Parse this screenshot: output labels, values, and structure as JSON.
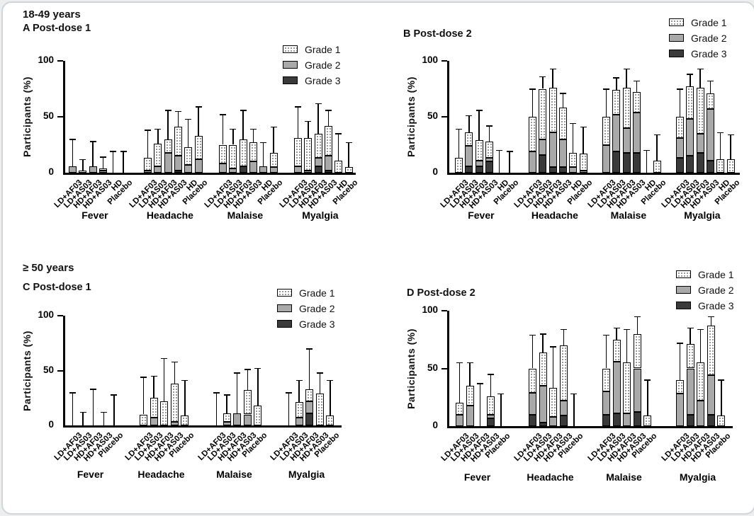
{
  "figure": {
    "top_header": "18-49 years",
    "bottom_header": "≥ 50 years"
  },
  "legend": {
    "labels": [
      "Grade 1",
      "Grade 2",
      "Grade 3"
    ]
  },
  "colors": {
    "grade1_fill": "#ffffff",
    "grade1_dots": "#4a4a4a",
    "grade2_fill": "#a9a9a9",
    "grade3_fill": "#3a3a3a",
    "bar_border": "#000000",
    "axis": "#000000",
    "frame_border": "#d2d6d9"
  },
  "chart_data": [
    {
      "id": "A",
      "type": "bar",
      "stacked": true,
      "title": "A Post-dose 1",
      "age_group": "18-49 years",
      "ylabel": "Participants (%)",
      "ylim": [
        0,
        100
      ],
      "yticks": [
        0,
        50,
        100
      ],
      "grid": false,
      "legend_position": "top-right",
      "series_order": [
        "Grade 3",
        "Grade 2",
        "Grade 1"
      ],
      "groups": [
        {
          "label": "Fever",
          "arms": [
            "LD+AF03",
            "LD+AS03",
            "HD+AF03",
            "HD+AS03",
            "HD",
            "Placebo"
          ],
          "values": [
            {
              "grade1": 0,
              "grade2": 6,
              "grade3": 0,
              "err_top": 30
            },
            {
              "grade1": 2,
              "grade2": 0,
              "grade3": 0,
              "err_top": 12
            },
            {
              "grade1": 0,
              "grade2": 6,
              "grade3": 0,
              "err_top": 28
            },
            {
              "grade1": 2,
              "grade2": 2,
              "grade3": 0,
              "err_top": 14
            },
            {
              "grade1": 0,
              "grade2": 0,
              "grade3": 0,
              "err_top": 19
            },
            {
              "grade1": 0,
              "grade2": 0,
              "grade3": 0,
              "err_top": 19
            }
          ]
        },
        {
          "label": "Headache",
          "arms": [
            "LD+AF03",
            "LD+AS03",
            "HD+AF03",
            "HD+AS03",
            "HD",
            "Placebo"
          ],
          "values": [
            {
              "grade1": 11,
              "grade2": 2,
              "grade3": 0,
              "err_top": 38
            },
            {
              "grade1": 20,
              "grade2": 6,
              "grade3": 0,
              "err_top": 39
            },
            {
              "grade1": 12,
              "grade2": 18,
              "grade3": 0,
              "err_top": 56
            },
            {
              "grade1": 26,
              "grade2": 13,
              "grade3": 2,
              "err_top": 55
            },
            {
              "grade1": 16,
              "grade2": 7,
              "grade3": 0,
              "err_top": 48
            },
            {
              "grade1": 21,
              "grade2": 12,
              "grade3": 0,
              "err_top": 59
            }
          ]
        },
        {
          "label": "Malaise",
          "arms": [
            "LD+AF03",
            "LD+AS03",
            "HD+AF03",
            "HD+AS03",
            "HD",
            "Placebo"
          ],
          "values": [
            {
              "grade1": 17,
              "grade2": 8,
              "grade3": 0,
              "err_top": 52
            },
            {
              "grade1": 21,
              "grade2": 4,
              "grade3": 0,
              "err_top": 39
            },
            {
              "grade1": 24,
              "grade2": 0,
              "grade3": 6,
              "err_top": 56
            },
            {
              "grade1": 17,
              "grade2": 10,
              "grade3": 0,
              "err_top": 39
            },
            {
              "grade1": 0,
              "grade2": 6,
              "grade3": 0,
              "err_top": 27
            },
            {
              "grade1": 13,
              "grade2": 5,
              "grade3": 0,
              "err_top": 41
            }
          ]
        },
        {
          "label": "Myalgia",
          "arms": [
            "LD+AF03",
            "LD+AS03",
            "HD+AF03",
            "HD+AS03",
            "HD",
            "Placebo"
          ],
          "values": [
            {
              "grade1": 25,
              "grade2": 6,
              "grade3": 0,
              "err_top": 59
            },
            {
              "grade1": 29,
              "grade2": 2,
              "grade3": 0,
              "err_top": 46
            },
            {
              "grade1": 22,
              "grade2": 7,
              "grade3": 6,
              "err_top": 62
            },
            {
              "grade1": 27,
              "grade2": 13,
              "grade3": 2,
              "err_top": 56
            },
            {
              "grade1": 11,
              "grade2": 0,
              "grade3": 0,
              "err_top": 35
            },
            {
              "grade1": 5,
              "grade2": 0,
              "grade3": 0,
              "err_top": 27
            }
          ]
        }
      ]
    },
    {
      "id": "B",
      "type": "bar",
      "stacked": true,
      "title": "B Post-dose 2",
      "age_group": "18-49 years",
      "ylabel": "Participants (%)",
      "ylim": [
        0,
        100
      ],
      "yticks": [
        0,
        50,
        100
      ],
      "grid": false,
      "legend_position": "top-right",
      "series_order": [
        "Grade 3",
        "Grade 2",
        "Grade 1"
      ],
      "groups": [
        {
          "label": "Fever",
          "arms": [
            "LD+AF03",
            "LD+AS03",
            "HD+AF03",
            "HD+AS03",
            "HD",
            "Placebo"
          ],
          "values": [
            {
              "grade1": 13,
              "grade2": 0,
              "grade3": 0,
              "err_top": 39
            },
            {
              "grade1": 12,
              "grade2": 18,
              "grade3": 6,
              "err_top": 51
            },
            {
              "grade1": 18,
              "grade2": 5,
              "grade3": 6,
              "err_top": 56
            },
            {
              "grade1": 15,
              "grade2": 3,
              "grade3": 10,
              "err_top": 42
            },
            {
              "grade1": 0,
              "grade2": 0,
              "grade3": 0,
              "err_top": 20
            },
            {
              "grade1": 0,
              "grade2": 0,
              "grade3": 0,
              "err_top": 19
            }
          ]
        },
        {
          "label": "Headache",
          "arms": [
            "LD+AF03",
            "LD+AS03",
            "HD+AF03",
            "HD+AS03",
            "HD",
            "Placebo"
          ],
          "values": [
            {
              "grade1": 31,
              "grade2": 19,
              "grade3": 0,
              "err_top": 75
            },
            {
              "grade1": 45,
              "grade2": 14,
              "grade3": 16,
              "err_top": 86
            },
            {
              "grade1": 40,
              "grade2": 31,
              "grade3": 5,
              "err_top": 93
            },
            {
              "grade1": 28,
              "grade2": 25,
              "grade3": 5,
              "err_top": 71
            },
            {
              "grade1": 13,
              "grade2": 5,
              "grade3": 0,
              "err_top": 44
            },
            {
              "grade1": 15,
              "grade2": 2,
              "grade3": 0,
              "err_top": 41
            }
          ]
        },
        {
          "label": "Malaise",
          "arms": [
            "LD+AF03",
            "LD+AS03",
            "HD+AF03",
            "HD+AS03",
            "HD",
            "Placebo"
          ],
          "values": [
            {
              "grade1": 25,
              "grade2": 25,
              "grade3": 0,
              "err_top": 75
            },
            {
              "grade1": 22,
              "grade2": 33,
              "grade3": 19,
              "err_top": 85
            },
            {
              "grade1": 36,
              "grade2": 22,
              "grade3": 18,
              "err_top": 93
            },
            {
              "grade1": 18,
              "grade2": 36,
              "grade3": 18,
              "err_top": 82
            },
            {
              "grade1": 0,
              "grade2": 0,
              "grade3": 0,
              "err_top": 20
            },
            {
              "grade1": 11,
              "grade2": 0,
              "grade3": 0,
              "err_top": 34
            }
          ]
        },
        {
          "label": "Myalgia",
          "arms": [
            "LD+AF03",
            "LD+AS03",
            "HD+AF03",
            "HD+AS03",
            "HD",
            "Placebo"
          ],
          "values": [
            {
              "grade1": 19,
              "grade2": 18,
              "grade3": 13,
              "err_top": 75
            },
            {
              "grade1": 29,
              "grade2": 33,
              "grade3": 15,
              "err_top": 88
            },
            {
              "grade1": 41,
              "grade2": 17,
              "grade3": 18,
              "err_top": 93
            },
            {
              "grade1": 14,
              "grade2": 46,
              "grade3": 11,
              "err_top": 82
            },
            {
              "grade1": 12,
              "grade2": 0,
              "grade3": 0,
              "err_top": 36
            },
            {
              "grade1": 12,
              "grade2": 0,
              "grade3": 0,
              "err_top": 34
            }
          ]
        }
      ]
    },
    {
      "id": "C",
      "type": "bar",
      "stacked": true,
      "title": "C Post-dose 1",
      "age_group": "≥ 50 years",
      "ylabel": "Participants (%)",
      "ylim": [
        0,
        100
      ],
      "yticks": [
        0,
        50,
        100
      ],
      "grid": false,
      "legend_position": "top-right",
      "series_order": [
        "Grade 3",
        "Grade 2",
        "Grade 1"
      ],
      "groups": [
        {
          "label": "Fever",
          "arms": [
            "LD+AF03",
            "LD+AS03",
            "HD+AF03",
            "HD+AS03",
            "Placebo"
          ],
          "values": [
            {
              "grade1": 0,
              "grade2": 0,
              "grade3": 0,
              "err_top": 30
            },
            {
              "grade1": 0,
              "grade2": 0,
              "grade3": 0,
              "err_top": 12
            },
            {
              "grade1": 0,
              "grade2": 0,
              "grade3": 0,
              "err_top": 33
            },
            {
              "grade1": 0,
              "grade2": 0,
              "grade3": 0,
              "err_top": 12
            },
            {
              "grade1": 0,
              "grade2": 0,
              "grade3": 0,
              "err_top": 28
            }
          ]
        },
        {
          "label": "Headache",
          "arms": [
            "LD+AF03",
            "LD+AS03",
            "HD+AF03",
            "HD+AS03",
            "Placebo"
          ],
          "values": [
            {
              "grade1": 10,
              "grade2": 0,
              "grade3": 0,
              "err_top": 44
            },
            {
              "grade1": 18,
              "grade2": 7,
              "grade3": 0,
              "err_top": 45
            },
            {
              "grade1": 22,
              "grade2": 0,
              "grade3": 0,
              "err_top": 61
            },
            {
              "grade1": 35,
              "grade2": 3,
              "grade3": 0,
              "err_top": 58
            },
            {
              "grade1": 9,
              "grade2": 0,
              "grade3": 0,
              "err_top": 41
            }
          ]
        },
        {
          "label": "Malaise",
          "arms": [
            "LD+AF03",
            "LD+AS03",
            "HD+AF03",
            "HD+AS03",
            "Placebo"
          ],
          "values": [
            {
              "grade1": 0,
              "grade2": 0,
              "grade3": 0,
              "err_top": 30
            },
            {
              "grade1": 8,
              "grade2": 3,
              "grade3": 0,
              "err_top": 28
            },
            {
              "grade1": 0,
              "grade2": 11,
              "grade3": 0,
              "err_top": 48
            },
            {
              "grade1": 22,
              "grade2": 10,
              "grade3": 0,
              "err_top": 51
            },
            {
              "grade1": 18,
              "grade2": 0,
              "grade3": 0,
              "err_top": 52
            }
          ]
        },
        {
          "label": "Myalgia",
          "arms": [
            "LD+AF03",
            "LD+AS03",
            "HD+AF03",
            "HD+AS03",
            "Placebo"
          ],
          "values": [
            {
              "grade1": 0,
              "grade2": 0,
              "grade3": 0,
              "err_top": 30
            },
            {
              "grade1": 14,
              "grade2": 7,
              "grade3": 0,
              "err_top": 41
            },
            {
              "grade1": 11,
              "grade2": 11,
              "grade3": 11,
              "err_top": 70
            },
            {
              "grade1": 29,
              "grade2": 0,
              "grade3": 0,
              "err_top": 48
            },
            {
              "grade1": 9,
              "grade2": 0,
              "grade3": 0,
              "err_top": 41
            }
          ]
        }
      ]
    },
    {
      "id": "D",
      "type": "bar",
      "stacked": true,
      "title": "D Post-dose 2",
      "age_group": "≥ 50 years",
      "ylabel": "Participants (%)",
      "ylim": [
        0,
        100
      ],
      "yticks": [
        0,
        50,
        100
      ],
      "grid": false,
      "legend_position": "top-right",
      "series_order": [
        "Grade 3",
        "Grade 2",
        "Grade 1"
      ],
      "groups": [
        {
          "label": "Fever",
          "arms": [
            "LD+AF03",
            "LD+AS03",
            "HD+AF03",
            "HD+AS03",
            "Placebo"
          ],
          "values": [
            {
              "grade1": 10,
              "grade2": 10,
              "grade3": 0,
              "err_top": 55
            },
            {
              "grade1": 17,
              "grade2": 18,
              "grade3": 0,
              "err_top": 55
            },
            {
              "grade1": 0,
              "grade2": 0,
              "grade3": 0,
              "err_top": 37
            },
            {
              "grade1": 16,
              "grade2": 3,
              "grade3": 7,
              "err_top": 45
            },
            {
              "grade1": 0,
              "grade2": 0,
              "grade3": 0,
              "err_top": 28
            }
          ]
        },
        {
          "label": "Headache",
          "arms": [
            "LD+AF03",
            "LD+AS03",
            "HD+AF03",
            "HD+AS03",
            "Placebo"
          ],
          "values": [
            {
              "grade1": 21,
              "grade2": 19,
              "grade3": 10,
              "err_top": 79
            },
            {
              "grade1": 29,
              "grade2": 32,
              "grade3": 3,
              "err_top": 80
            },
            {
              "grade1": 25,
              "grade2": 8,
              "grade3": 0,
              "err_top": 69
            },
            {
              "grade1": 48,
              "grade2": 13,
              "grade3": 9,
              "err_top": 84
            },
            {
              "grade1": 0,
              "grade2": 0,
              "grade3": 0,
              "err_top": 28
            }
          ]
        },
        {
          "label": "Malaise",
          "arms": [
            "LD+AF03",
            "LD+AS03",
            "HD+AF03",
            "HD+AS03",
            "Placebo"
          ],
          "values": [
            {
              "grade1": 20,
              "grade2": 20,
              "grade3": 10,
              "err_top": 79
            },
            {
              "grade1": 19,
              "grade2": 45,
              "grade3": 11,
              "err_top": 85
            },
            {
              "grade1": 44,
              "grade2": 11,
              "grade3": 0,
              "err_top": 84
            },
            {
              "grade1": 30,
              "grade2": 38,
              "grade3": 12,
              "err_top": 95
            },
            {
              "grade1": 9,
              "grade2": 0,
              "grade3": 0,
              "err_top": 40
            }
          ]
        },
        {
          "label": "Myalgia",
          "arms": [
            "LD+AF03",
            "LD+AS03",
            "HD+AF03",
            "HD+AS03",
            "Placebo"
          ],
          "values": [
            {
              "grade1": 12,
              "grade2": 28,
              "grade3": 0,
              "err_top": 72
            },
            {
              "grade1": 21,
              "grade2": 40,
              "grade3": 10,
              "err_top": 85
            },
            {
              "grade1": 33,
              "grade2": 22,
              "grade3": 0,
              "err_top": 84
            },
            {
              "grade1": 43,
              "grade2": 34,
              "grade3": 10,
              "err_top": 95
            },
            {
              "grade1": 9,
              "grade2": 0,
              "grade3": 0,
              "err_top": 40
            }
          ]
        }
      ]
    }
  ]
}
